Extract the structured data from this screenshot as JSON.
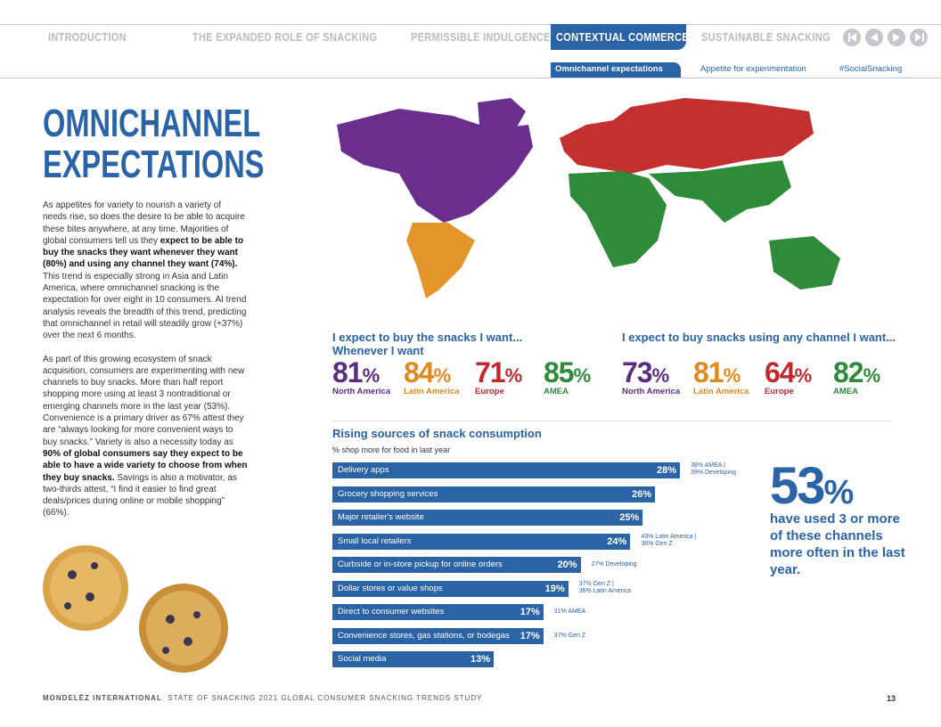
{
  "nav": {
    "tabs": [
      "INTRODUCTION",
      "THE EXPANDED ROLE OF SNACKING",
      "PERMISSIBLE INDULGENCE",
      "CONTEXTUAL COMMERCE",
      "SUSTAINABLE SNACKING"
    ],
    "active_tab": 3,
    "subtabs": [
      "Omnichannel expectations",
      "Appetite for experimentation",
      "#SocialSnacking"
    ],
    "active_subtab": 0
  },
  "title": [
    "OMNICHANNEL",
    "EXPECTATIONS"
  ],
  "body": {
    "paragraphs": [
      {
        "runs": [
          {
            "text": "As appetites for variety to nourish a variety of needs rise, so does the desire to be able to acquire these bites anywhere, at any time. Majorities of global consumers tell us they ",
            "bold": false
          },
          {
            "text": "expect to be able to buy the snacks they want whenever they want (80%) and using any channel they want (74%).",
            "bold": true
          },
          {
            "text": " This trend is especially strong in Asia and Latin America, where omnichannel snacking is the expectation for over eight in 10 consumers. AI trend analysis reveals the breadth of this trend, predicting that omnichannel in retail will steadily grow (+37%) over the next 6 months.",
            "bold": false
          }
        ]
      },
      {
        "runs": [
          {
            "text": "As part of this growing ecosystem of snack acquisition, consumers are experimenting with new channels to buy snacks. More than half report shopping more using at least 3 nontraditional or emerging channels more in the last year (53%). Convenience is a primary driver as 67% attest they are “always looking for more convenient ways to buy snacks.” Variety is also a necessity today as ",
            "bold": false
          },
          {
            "text": "90% of global consumers say they expect to be able to have a wide variety to choose from when they buy snacks.",
            "bold": true
          },
          {
            "text": " Savings is also a motivator, as two-thirds attest, “I find it easier to find great deals/prices during online or mobile shopping” (66%).",
            "bold": false
          }
        ]
      }
    ]
  },
  "stats": [
    {
      "heading": [
        "I expect to buy the snacks I want...",
        "Whenever I want"
      ],
      "items": [
        {
          "value": "81",
          "unit": "%",
          "label": "North America",
          "color": "#5a2d82"
        },
        {
          "value": "84",
          "unit": "%",
          "label": "Latin America",
          "color": "#e0891f"
        },
        {
          "value": "71",
          "unit": "%",
          "label": "Europe",
          "color": "#c0282e"
        },
        {
          "value": "85",
          "unit": "%",
          "label": "AMEA",
          "color": "#2f8a3b"
        }
      ]
    },
    {
      "heading": [
        "I expect to buy snacks using any channel I want..."
      ],
      "items": [
        {
          "value": "73",
          "unit": "%",
          "label": "North America",
          "color": "#5a2d82"
        },
        {
          "value": "81",
          "unit": "%",
          "label": "Latin America",
          "color": "#e0891f"
        },
        {
          "value": "64",
          "unit": "%",
          "label": "Europe",
          "color": "#c0282e"
        },
        {
          "value": "82",
          "unit": "%",
          "label": "AMEA",
          "color": "#2f8a3b"
        }
      ]
    }
  ],
  "chart_data": {
    "type": "bar",
    "title": "Rising sources of snack consumption",
    "subtitle": "% shop more for food in last year",
    "color": "#2a63a6",
    "categories": [
      "Delivery apps",
      "Grocery shopping services",
      "Major retailer's website",
      "Small local retailers",
      "Curbside or in-store pickup for online orders",
      "Dollar stores or value shops",
      "Direct to consumer websites",
      "Convenience stores, gas stations, or bodegas",
      "Social media"
    ],
    "values": [
      28,
      26,
      25,
      24,
      20,
      19,
      17,
      17,
      13
    ],
    "value_labels": [
      "28%",
      "26%",
      "25%",
      "24%",
      "20%",
      "19%",
      "17%",
      "17%",
      "13%"
    ],
    "notes": [
      [
        "38% AMEA |",
        "39% Developing"
      ],
      null,
      null,
      [
        "43% Latin America |",
        "36% Gen Z"
      ],
      [
        "27% Developing"
      ],
      [
        "37% Gen Z  |",
        "36% Latin America"
      ],
      [
        "31% AMEA"
      ],
      [
        "37% Gen Z"
      ],
      null
    ]
  },
  "callout": {
    "value": "53",
    "unit": "%",
    "text": "have used 3 or more of these channels more often in the last year."
  },
  "footer": {
    "brand": "MONDELĒZ INTERNATIONAL",
    "study": "STATE OF SNACKING 2021 GLOBAL CONSUMER SNACKING TRENDS STUDY",
    "page": "13"
  }
}
